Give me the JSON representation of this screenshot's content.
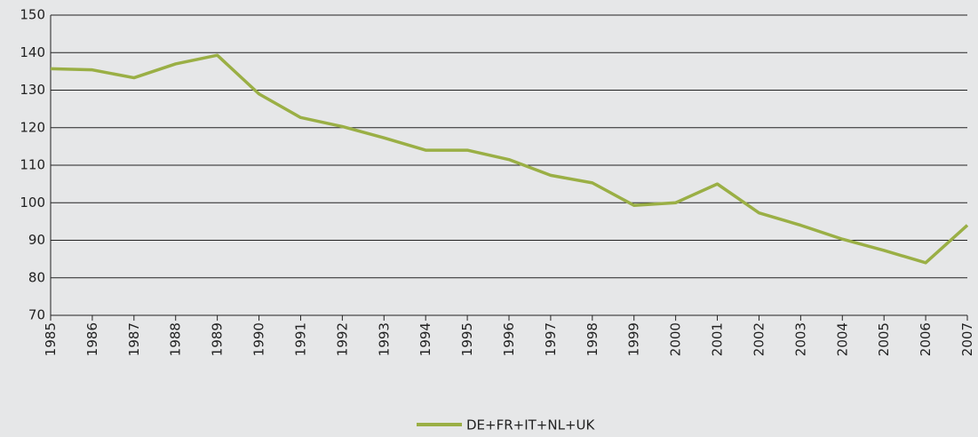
{
  "chart_data": {
    "type": "line",
    "categories": [
      "1985",
      "1986",
      "1987",
      "1988",
      "1989",
      "1990",
      "1991",
      "1992",
      "1993",
      "1994",
      "1995",
      "1996",
      "1997",
      "1998",
      "1999",
      "2000",
      "2001",
      "2002",
      "2003",
      "2004",
      "2005",
      "2006",
      "2007"
    ],
    "series": [
      {
        "name": "DE+FR+IT+NL+UK",
        "color": "#9aaf45",
        "values": [
          135.7,
          135.4,
          133.3,
          137,
          139.3,
          129,
          122.7,
          120.3,
          117.3,
          114,
          114,
          111.5,
          107.3,
          105.3,
          99.3,
          100,
          105,
          97.3,
          94,
          90.3,
          87.3,
          84,
          94
        ]
      }
    ],
    "ylim": [
      70,
      150
    ],
    "yticks": [
      70,
      80,
      90,
      100,
      110,
      120,
      130,
      140,
      150
    ],
    "grid": true,
    "legend": "bottom"
  }
}
